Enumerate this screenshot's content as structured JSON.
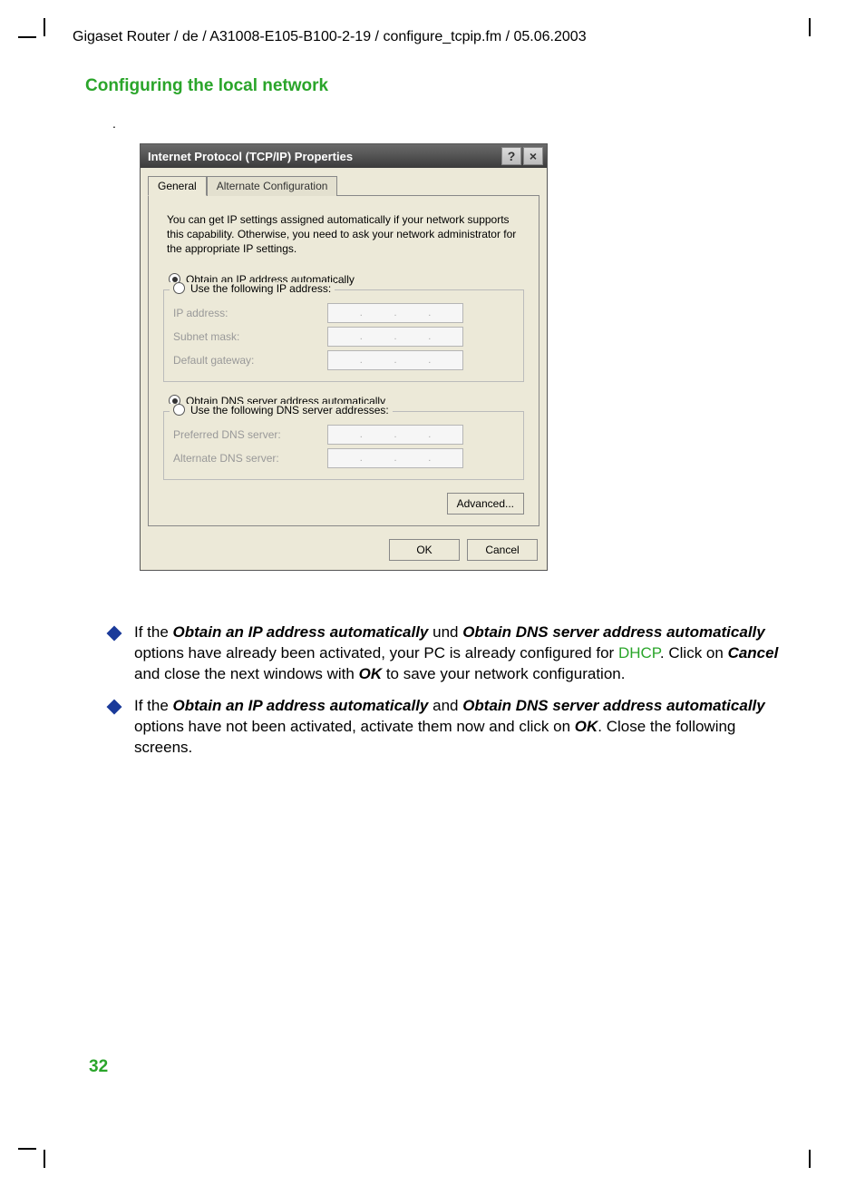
{
  "header": "Gigaset Router / de / A31008-E105-B100-2-19 / configure_tcpip.fm / 05.06.2003",
  "section_title": "Configuring the local network",
  "page_number": "32",
  "dialog": {
    "title": "Internet Protocol (TCP/IP) Properties",
    "help_glyph": "?",
    "close_glyph": "×",
    "tabs": {
      "general": "General",
      "alt": "Alternate Configuration"
    },
    "description": "You can get IP settings assigned automatically if your network supports this capability. Otherwise, you need to ask your network administrator for the appropriate IP settings.",
    "radio_ip_auto": "Obtain an IP address automatically",
    "radio_ip_manual": "Use the following IP address:",
    "fields": {
      "ip": "IP address:",
      "mask": "Subnet mask:",
      "gw": "Default gateway:"
    },
    "radio_dns_auto": "Obtain DNS server address automatically",
    "radio_dns_manual": "Use the following DNS server addresses:",
    "dns_fields": {
      "pref": "Preferred DNS server:",
      "alt": "Alternate DNS server:"
    },
    "advanced": "Advanced...",
    "ok": "OK",
    "cancel": "Cancel"
  },
  "bullets": {
    "b1": {
      "p1a": "If the ",
      "p1b": "Obtain an IP address automatically",
      "p1c": " und ",
      "p1d": "Obtain DNS server address automatically",
      "p1e": "  options have already been activated, your PC is already configured for ",
      "p1f": "DHCP",
      "p1g": ". Click on ",
      "p1h": "Cancel",
      "p1i": " and close the next windows with ",
      "p1j": "OK",
      "p1k": " to save your network configuration."
    },
    "b2": {
      "p2a": "If the ",
      "p2b": "Obtain an IP address automatically",
      "p2c": " and ",
      "p2d": "Obtain DNS server address automatically",
      "p2e": " options have not been activated, activate them now and click on ",
      "p2f": "OK",
      "p2g": ". Close the following screens."
    }
  }
}
